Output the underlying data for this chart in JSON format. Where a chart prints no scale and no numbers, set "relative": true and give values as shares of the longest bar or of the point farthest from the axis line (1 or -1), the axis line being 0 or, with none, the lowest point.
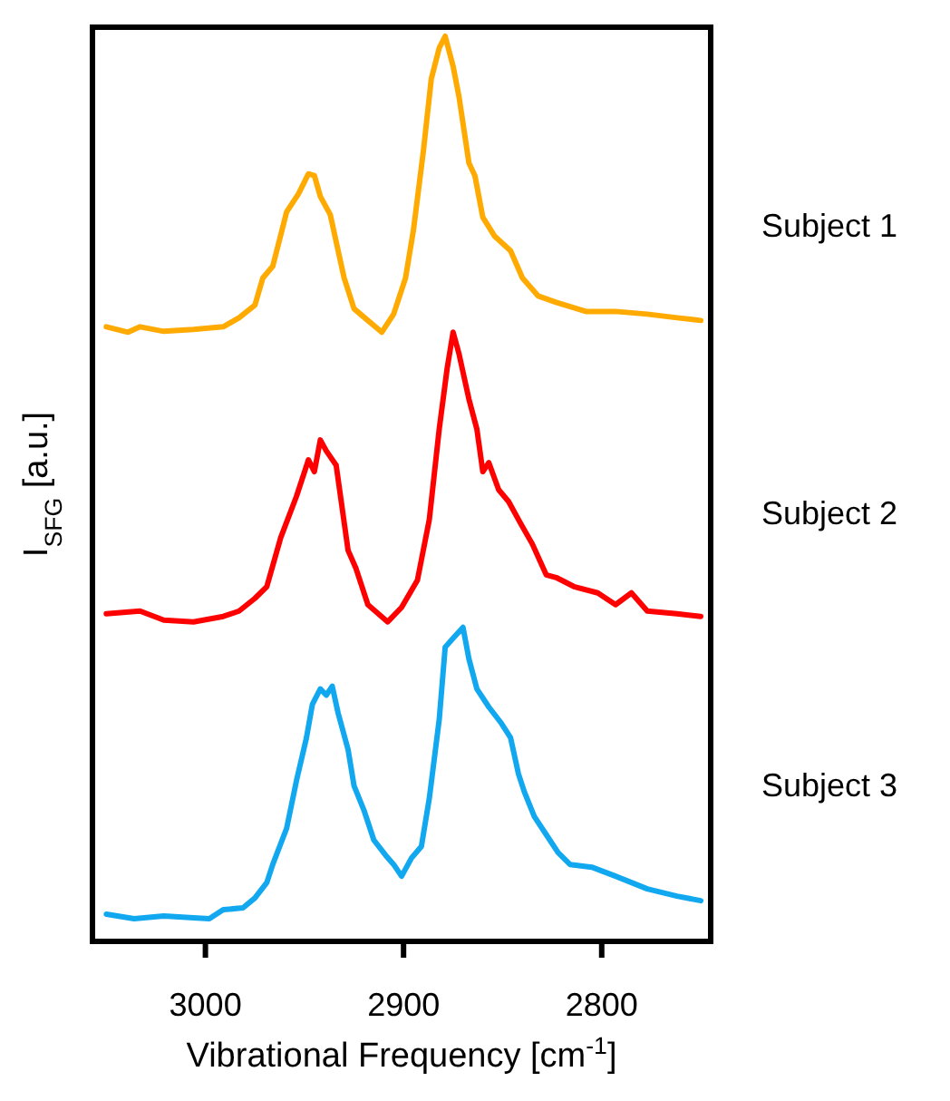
{
  "chart_data": {
    "type": "line",
    "relative": true,
    "xlabel": "Vibrational Frequency [cm$^{-1}$]",
    "ylabel": "I$_{SFG}$ [a.u.]",
    "xlim": [
      3057,
      2745
    ],
    "xticks": [
      3000,
      2900,
      2800
    ],
    "tick_labels": "x",
    "grid": false,
    "line_style": "solid",
    "marker": "none",
    "series": [
      {
        "name": "Subject 1",
        "color": "#ffaa00",
        "x": [
          3050,
          3039,
          3033,
          3021,
          3006,
          2991,
          2983,
          2975,
          2971,
          2966,
          2959,
          2953,
          2948,
          2945,
          2942,
          2937,
          2934,
          2930,
          2925,
          2918,
          2911,
          2905,
          2899,
          2895,
          2890,
          2886,
          2882,
          2879,
          2875,
          2872,
          2867,
          2864,
          2860,
          2854,
          2846,
          2840,
          2832,
          2823,
          2808,
          2793,
          2777,
          2762,
          2750
        ],
        "values": [
          0.679,
          0.673,
          0.679,
          0.674,
          0.676,
          0.679,
          0.689,
          0.703,
          0.733,
          0.746,
          0.806,
          0.826,
          0.848,
          0.846,
          0.823,
          0.803,
          0.773,
          0.733,
          0.699,
          0.686,
          0.673,
          0.693,
          0.733,
          0.786,
          0.873,
          0.953,
          0.987,
          1,
          0.967,
          0.933,
          0.86,
          0.846,
          0.8,
          0.779,
          0.763,
          0.733,
          0.713,
          0.706,
          0.696,
          0.696,
          0.693,
          0.689,
          0.686
        ]
      },
      {
        "name": "Subject 2",
        "color": "#ff0000",
        "x": [
          3050,
          3033,
          3021,
          3006,
          2991,
          2983,
          2975,
          2969,
          2962,
          2954,
          2948,
          2945,
          2942,
          2939,
          2934,
          2928,
          2924,
          2918,
          2908,
          2901,
          2893,
          2887,
          2882,
          2878,
          2875,
          2872,
          2867,
          2863,
          2860,
          2857,
          2852,
          2847,
          2841,
          2835,
          2828,
          2823,
          2814,
          2802,
          2793,
          2785,
          2777,
          2762,
          2750
        ],
        "values": [
          0.362,
          0.365,
          0.355,
          0.353,
          0.359,
          0.365,
          0.379,
          0.392,
          0.446,
          0.492,
          0.532,
          0.519,
          0.554,
          0.542,
          0.526,
          0.432,
          0.412,
          0.372,
          0.353,
          0.369,
          0.399,
          0.466,
          0.566,
          0.633,
          0.673,
          0.649,
          0.599,
          0.566,
          0.519,
          0.529,
          0.499,
          0.486,
          0.462,
          0.439,
          0.405,
          0.402,
          0.392,
          0.385,
          0.372,
          0.385,
          0.365,
          0.362,
          0.359
        ]
      },
      {
        "name": "Subject 3",
        "color": "#11a8f0",
        "x": [
          3050,
          3036,
          3021,
          3006,
          2998,
          2991,
          2981,
          2975,
          2969,
          2966,
          2959,
          2954,
          2949,
          2946,
          2942,
          2939,
          2936,
          2933,
          2928,
          2925,
          2920,
          2915,
          2909,
          2905,
          2901,
          2896,
          2891,
          2887,
          2882,
          2879,
          2875,
          2870,
          2867,
          2863,
          2857,
          2851,
          2846,
          2842,
          2839,
          2834,
          2828,
          2822,
          2816,
          2805,
          2793,
          2777,
          2762,
          2750
        ],
        "values": [
          0.03,
          0.025,
          0.028,
          0.026,
          0.025,
          0.035,
          0.037,
          0.048,
          0.065,
          0.085,
          0.125,
          0.178,
          0.225,
          0.262,
          0.279,
          0.272,
          0.282,
          0.252,
          0.212,
          0.172,
          0.145,
          0.112,
          0.095,
          0.085,
          0.072,
          0.092,
          0.105,
          0.158,
          0.245,
          0.325,
          0.335,
          0.347,
          0.312,
          0.279,
          0.259,
          0.242,
          0.225,
          0.185,
          0.165,
          0.138,
          0.118,
          0.098,
          0.085,
          0.082,
          0.072,
          0.058,
          0.05,
          0.045
        ]
      }
    ]
  }
}
